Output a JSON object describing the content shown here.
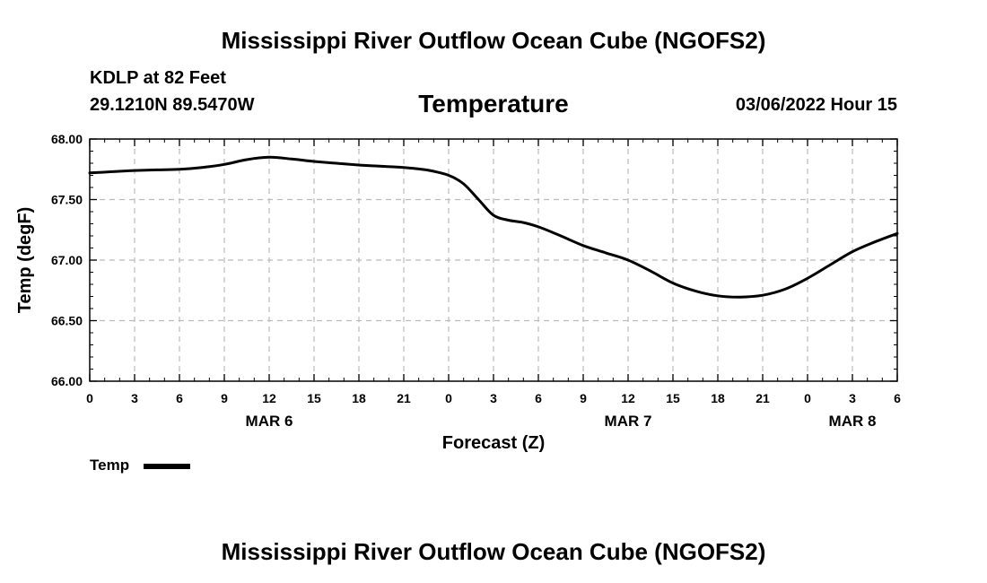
{
  "header": {
    "title": "Mississippi River Outflow Ocean Cube (NGOFS2)",
    "station": "KDLP at 82 Feet",
    "coords": "29.1210N  89.5470W",
    "subtitle": "Temperature",
    "timestamp": "03/06/2022 Hour 15"
  },
  "legend": {
    "label": "Temp"
  },
  "footer": {
    "title": "Mississippi River Outflow Ocean Cube (NGOFS2)"
  },
  "chart_data": {
    "type": "line",
    "title": "Temperature",
    "xlabel": "Forecast (Z)",
    "ylabel": "Temp (degF)",
    "ylim": [
      66.0,
      68.0
    ],
    "xlim": [
      0,
      54
    ],
    "y_ticks": [
      "66.00",
      "66.50",
      "67.00",
      "67.50",
      "68.00"
    ],
    "y_tick_values": [
      66.0,
      66.5,
      67.0,
      67.5,
      68.0
    ],
    "x_tick_values": [
      0,
      3,
      6,
      9,
      12,
      15,
      18,
      21,
      24,
      27,
      30,
      33,
      36,
      39,
      42,
      45,
      48,
      51,
      54
    ],
    "x_tick_labels": [
      "0",
      "3",
      "6",
      "9",
      "12",
      "15",
      "18",
      "21",
      "0",
      "3",
      "6",
      "9",
      "12",
      "15",
      "18",
      "21",
      "0",
      "3",
      "6"
    ],
    "date_labels": [
      {
        "text": "MAR 6",
        "x": 12
      },
      {
        "text": "MAR 7",
        "x": 36
      },
      {
        "text": "MAR 8",
        "x": 51
      }
    ],
    "grid": true,
    "line_color": "#000000",
    "grid_color": "#bbbbbb",
    "series": [
      {
        "name": "Temp",
        "x": [
          0,
          1.5,
          3,
          4.5,
          6,
          7.5,
          9,
          10.5,
          12,
          13.5,
          15,
          16.5,
          18,
          19.5,
          21,
          22.5,
          24,
          25,
          26,
          27,
          28,
          29,
          30,
          31.5,
          33,
          34.5,
          36,
          37.5,
          39,
          40.5,
          42,
          43.5,
          45,
          46.5,
          48,
          49.5,
          51,
          52.5,
          54
        ],
        "values": [
          67.72,
          67.73,
          67.74,
          67.745,
          67.75,
          67.765,
          67.79,
          67.83,
          67.85,
          67.835,
          67.815,
          67.8,
          67.785,
          67.775,
          67.765,
          67.745,
          67.7,
          67.63,
          67.5,
          67.37,
          67.33,
          67.31,
          67.275,
          67.2,
          67.12,
          67.06,
          67.0,
          66.91,
          66.81,
          66.745,
          66.705,
          66.695,
          66.71,
          66.76,
          66.85,
          66.96,
          67.07,
          67.15,
          67.22
        ]
      }
    ]
  }
}
